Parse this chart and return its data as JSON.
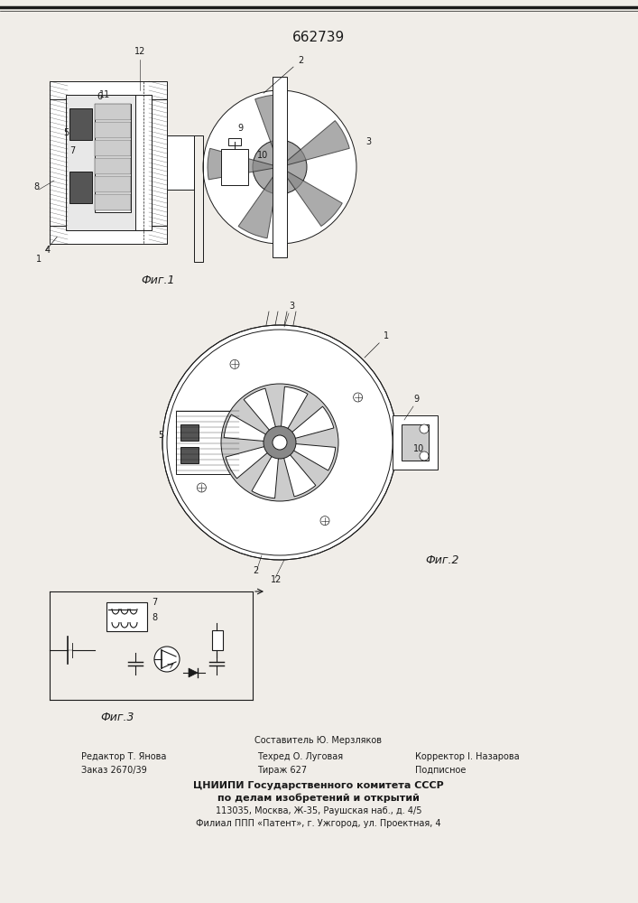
{
  "patent_number": "662739",
  "fig1_caption": "Фиг.1",
  "fig2_caption": "Фиг.2",
  "fig3_caption": "Фиг.3",
  "footer_line1": "Составитель Ю. Мерзляков",
  "footer_line2_left": "Редактор Т. Янова",
  "footer_line2_mid": "Техред О. Луговая",
  "footer_line2_right": "Корректор I. Назарова",
  "footer_line3_left": "Заказ 2670/39",
  "footer_line3_mid": "Тираж 627",
  "footer_line3_right": "Подписное",
  "footer_org": "ЦНИИПИ Государственного комитета СССР",
  "footer_org2": "по делам изобретений и открытий",
  "footer_addr1": "113035, Москва, Ж-35, Раушская наб., д. 4/5",
  "footer_addr2": "Филиал ППП «Патент», г. Ужгород, ул. Проектная, 4",
  "bg_color": "#f5f5f0",
  "line_color": "#1a1a1a",
  "hatch_color": "#333333",
  "page_bg": "#f0ede8"
}
